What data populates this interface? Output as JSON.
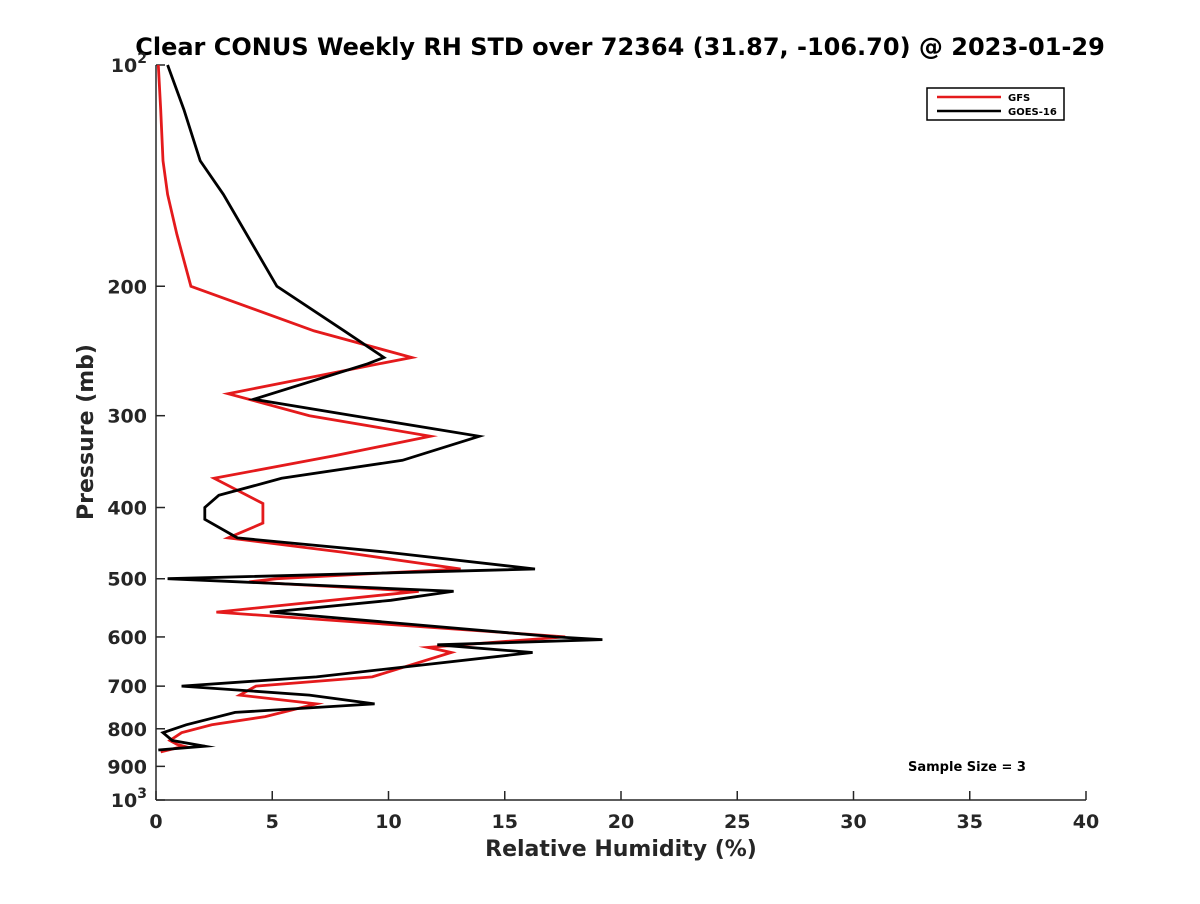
{
  "chart_data": {
    "type": "line",
    "title": "Clear CONUS Weekly RH STD over 72364 (31.87, -106.70) @ 2023-01-29",
    "xlabel": "Relative Humidity (%)",
    "ylabel": "Pressure (mb)",
    "xlim": [
      0,
      40
    ],
    "ylim": [
      100,
      1000
    ],
    "yscale": "log",
    "y_reversed": true,
    "grid": false,
    "legend_position": "top-right",
    "xticks": [
      "0",
      "5",
      "10",
      "15",
      "20",
      "25",
      "30",
      "35",
      "40"
    ],
    "yticks": [
      {
        "value": 100,
        "base": "10",
        "exp": "2"
      },
      {
        "value": 200,
        "label": "200"
      },
      {
        "value": 300,
        "label": "300"
      },
      {
        "value": 400,
        "label": "400"
      },
      {
        "value": 500,
        "label": "500"
      },
      {
        "value": 600,
        "label": "600"
      },
      {
        "value": 700,
        "label": "700"
      },
      {
        "value": 800,
        "label": "800"
      },
      {
        "value": 900,
        "label": "900"
      },
      {
        "value": 1000,
        "base": "10",
        "exp": "3"
      }
    ],
    "annotation": "Sample Size = 3",
    "series": [
      {
        "name": "GFS",
        "color": "#e41a1c",
        "x": [
          0.1,
          0.2,
          0.3,
          0.5,
          0.9,
          1.5,
          6.8,
          11.0,
          9.6,
          3.1,
          6.6,
          11.8,
          7.7,
          2.5,
          4.6,
          4.6,
          3.1,
          8.0,
          13.1,
          5.2,
          4.0,
          11.3,
          2.6,
          17.6,
          11.7,
          12.7,
          9.3,
          4.3,
          3.6,
          6.9,
          4.7,
          2.4,
          1.1,
          0.6,
          0.9,
          1.2,
          0.2
        ],
        "y": [
          100,
          115,
          135,
          150,
          170,
          200,
          230,
          250,
          255,
          280,
          300,
          320,
          340,
          365,
          395,
          420,
          440,
          460,
          485,
          500,
          505,
          520,
          555,
          600,
          620,
          630,
          680,
          700,
          720,
          740,
          770,
          790,
          810,
          830,
          840,
          845,
          860
        ]
      },
      {
        "name": "GOES-16",
        "color": "#000000",
        "x": [
          0.5,
          1.2,
          1.9,
          2.9,
          5.2,
          8.1,
          9.8,
          9.1,
          4.2,
          8.5,
          13.9,
          10.6,
          5.4,
          2.7,
          2.1,
          2.1,
          3.5,
          9.9,
          16.3,
          0.5,
          12.8,
          10.1,
          4.9,
          17.2,
          19.2,
          12.1,
          16.2,
          6.9,
          1.1,
          6.6,
          9.4,
          3.4,
          1.3,
          0.3,
          0.7,
          2.1,
          0.1
        ],
        "y": [
          100,
          115,
          135,
          150,
          200,
          230,
          250,
          255,
          285,
          300,
          320,
          345,
          365,
          385,
          400,
          415,
          440,
          460,
          485,
          500,
          520,
          535,
          555,
          600,
          605,
          615,
          630,
          680,
          700,
          720,
          740,
          760,
          790,
          810,
          830,
          845,
          855
        ]
      }
    ]
  }
}
